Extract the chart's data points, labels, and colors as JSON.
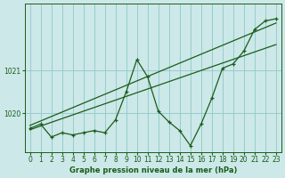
{
  "title": "Graphe pression niveau de la mer (hPa)",
  "background_color": "#cce8e8",
  "grid_color": "#99cccc",
  "line_color": "#1a5c1a",
  "x_values": [
    0,
    1,
    2,
    3,
    4,
    5,
    6,
    7,
    8,
    9,
    10,
    11,
    12,
    13,
    14,
    15,
    16,
    17,
    18,
    19,
    20,
    21,
    22,
    23
  ],
  "y_values": [
    1019.65,
    1019.75,
    1019.45,
    1019.55,
    1019.5,
    1019.55,
    1019.6,
    1019.55,
    1019.85,
    1020.5,
    1021.25,
    1020.85,
    1020.05,
    1019.8,
    1019.6,
    1019.25,
    1019.75,
    1020.35,
    1021.05,
    1021.15,
    1021.45,
    1021.95,
    1022.15,
    1022.2
  ],
  "trend1_x": [
    0,
    23
  ],
  "trend1_y": [
    1019.72,
    1022.1
  ],
  "trend2_x": [
    0,
    23
  ],
  "trend2_y": [
    1019.62,
    1021.6
  ],
  "ylim": [
    1019.1,
    1022.55
  ],
  "yticks": [
    1020,
    1021
  ],
  "xlim": [
    -0.5,
    23.5
  ],
  "xticks": [
    0,
    1,
    2,
    3,
    4,
    5,
    6,
    7,
    8,
    9,
    10,
    11,
    12,
    13,
    14,
    15,
    16,
    17,
    18,
    19,
    20,
    21,
    22,
    23
  ],
  "xlabel_fontsize": 6.0,
  "tick_fontsize": 5.5
}
